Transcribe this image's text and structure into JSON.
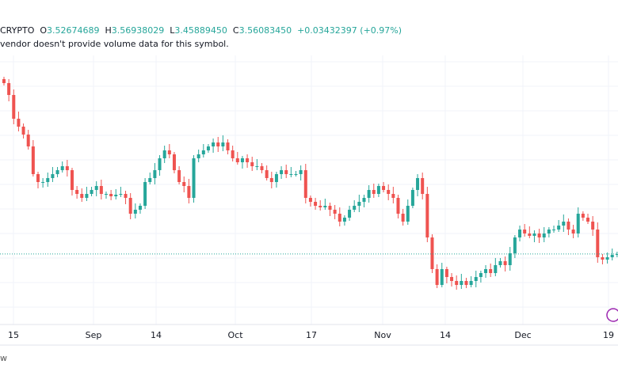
{
  "legend": {
    "symbol": "CRYPTO",
    "open_label": "O",
    "open": "3.52674689",
    "high_label": "H",
    "high": "3.56938029",
    "low_label": "L",
    "low": "3.45889450",
    "close_label": "C",
    "close": "3.56083450",
    "change": "+0.03432397 (+0.97%)"
  },
  "note": "vendor doesn't provide volume data for this symbol.",
  "footer": "w",
  "colors": {
    "up": "#26a69a",
    "down": "#ef5350",
    "grid": "#f0f3fa"
  },
  "chart_data": {
    "type": "candlestick",
    "x_ticks": [
      "15",
      "Sep",
      "14",
      "Oct",
      "17",
      "Nov",
      "14",
      "Dec",
      "19"
    ],
    "current_price": 3.5608345,
    "closes": [
      5.72,
      5.57,
      5.27,
      5.17,
      5.07,
      4.92,
      4.57,
      4.47,
      4.47,
      4.52,
      4.57,
      4.62,
      4.67,
      4.62,
      4.37,
      4.32,
      4.27,
      4.32,
      4.37,
      4.42,
      4.32,
      4.32,
      4.29,
      4.31,
      4.32,
      4.27,
      4.07,
      4.12,
      4.17,
      4.47,
      4.52,
      4.62,
      4.77,
      4.87,
      4.82,
      4.62,
      4.47,
      4.42,
      4.27,
      4.77,
      4.82,
      4.87,
      4.92,
      4.97,
      4.92,
      4.97,
      4.87,
      4.77,
      4.72,
      4.77,
      4.72,
      4.67,
      4.67,
      4.62,
      4.52,
      4.47,
      4.57,
      4.62,
      4.57,
      4.57,
      4.57,
      4.62,
      4.27,
      4.22,
      4.17,
      4.15,
      4.17,
      4.12,
      4.07,
      3.97,
      4.02,
      4.12,
      4.17,
      4.22,
      4.27,
      4.37,
      4.32,
      4.42,
      4.37,
      4.32,
      4.27,
      4.07,
      3.97,
      4.17,
      4.37,
      4.52,
      4.32,
      3.77,
      3.37,
      3.17,
      3.37,
      3.27,
      3.22,
      3.17,
      3.22,
      3.17,
      3.22,
      3.27,
      3.32,
      3.37,
      3.32,
      3.42,
      3.47,
      3.42,
      3.57,
      3.77,
      3.87,
      3.82,
      3.79,
      3.82,
      3.77,
      3.82,
      3.87,
      3.87,
      3.92,
      3.97,
      3.87,
      3.82,
      4.07,
      4.02,
      3.97,
      3.87,
      3.52,
      3.49,
      3.52,
      3.55,
      3.56
    ]
  }
}
